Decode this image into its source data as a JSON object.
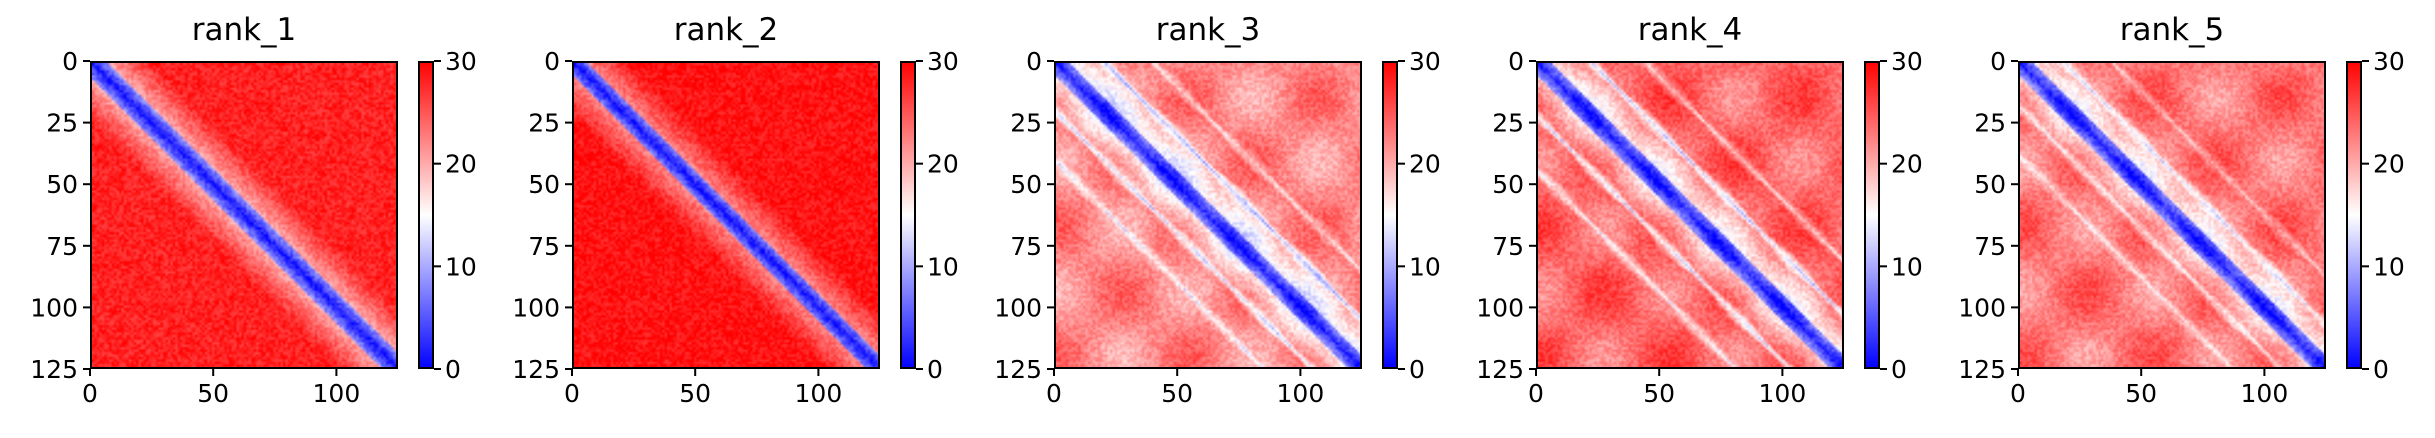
{
  "figure": {
    "colormap": "bwr",
    "colors": {
      "low": "#0000ff",
      "mid": "#ffffff",
      "high": "#ff0000"
    }
  },
  "chart_data": [
    {
      "type": "heatmap",
      "title": "rank_1",
      "matrix_size": 125,
      "xlim": [
        0,
        125
      ],
      "ylim": [
        125,
        0
      ],
      "xticks": [
        "0",
        "50",
        "100"
      ],
      "yticks": [
        "0",
        "25",
        "50",
        "75",
        "100",
        "125"
      ],
      "colorbar": {
        "range": [
          0,
          30
        ],
        "ticks": [
          "0",
          "10",
          "20",
          "30"
        ]
      },
      "diagonal_width": 6,
      "far_value": 28,
      "near_value": 20
    },
    {
      "type": "heatmap",
      "title": "rank_2",
      "matrix_size": 125,
      "xlim": [
        0,
        125
      ],
      "ylim": [
        125,
        0
      ],
      "xticks": [
        "0",
        "50",
        "100"
      ],
      "yticks": [
        "0",
        "25",
        "50",
        "75",
        "100",
        "125"
      ],
      "colorbar": {
        "range": [
          0,
          30
        ],
        "ticks": [
          "0",
          "10",
          "20",
          "30"
        ]
      },
      "diagonal_width": 5,
      "far_value": 29,
      "near_value": 22
    },
    {
      "type": "heatmap",
      "title": "rank_3",
      "matrix_size": 125,
      "xlim": [
        0,
        125
      ],
      "ylim": [
        125,
        0
      ],
      "xticks": [
        "0",
        "50",
        "100"
      ],
      "yticks": [
        "0",
        "25",
        "50",
        "75",
        "100",
        "125"
      ],
      "colorbar": {
        "range": [
          0,
          30
        ],
        "ticks": [
          "0",
          "10",
          "20",
          "30"
        ]
      },
      "diagonal_width": 5,
      "far_value": 22,
      "near_value": 14,
      "secondary_bands": [
        {
          "offset": 20,
          "value": 12
        },
        {
          "offset": 40,
          "value": 16
        }
      ]
    },
    {
      "type": "heatmap",
      "title": "rank_4",
      "matrix_size": 125,
      "xlim": [
        0,
        125
      ],
      "ylim": [
        125,
        0
      ],
      "xticks": [
        "0",
        "50",
        "100"
      ],
      "yticks": [
        "0",
        "25",
        "50",
        "75",
        "100",
        "125"
      ],
      "colorbar": {
        "range": [
          0,
          30
        ],
        "ticks": [
          "0",
          "10",
          "20",
          "30"
        ]
      },
      "diagonal_width": 5,
      "far_value": 24,
      "near_value": 16,
      "secondary_bands": [
        {
          "offset": 22,
          "value": 13
        },
        {
          "offset": 44,
          "value": 17
        }
      ]
    },
    {
      "type": "heatmap",
      "title": "rank_5",
      "matrix_size": 125,
      "xlim": [
        0,
        125
      ],
      "ylim": [
        125,
        0
      ],
      "xticks": [
        "0",
        "50",
        "100"
      ],
      "yticks": [
        "0",
        "25",
        "50",
        "75",
        "100",
        "125"
      ],
      "colorbar": {
        "range": [
          0,
          30
        ],
        "ticks": [
          "0",
          "10",
          "20",
          "30"
        ]
      },
      "diagonal_width": 5,
      "far_value": 23,
      "near_value": 16,
      "secondary_bands": [
        {
          "offset": 18,
          "value": 15
        },
        {
          "offset": 38,
          "value": 18
        }
      ]
    }
  ]
}
